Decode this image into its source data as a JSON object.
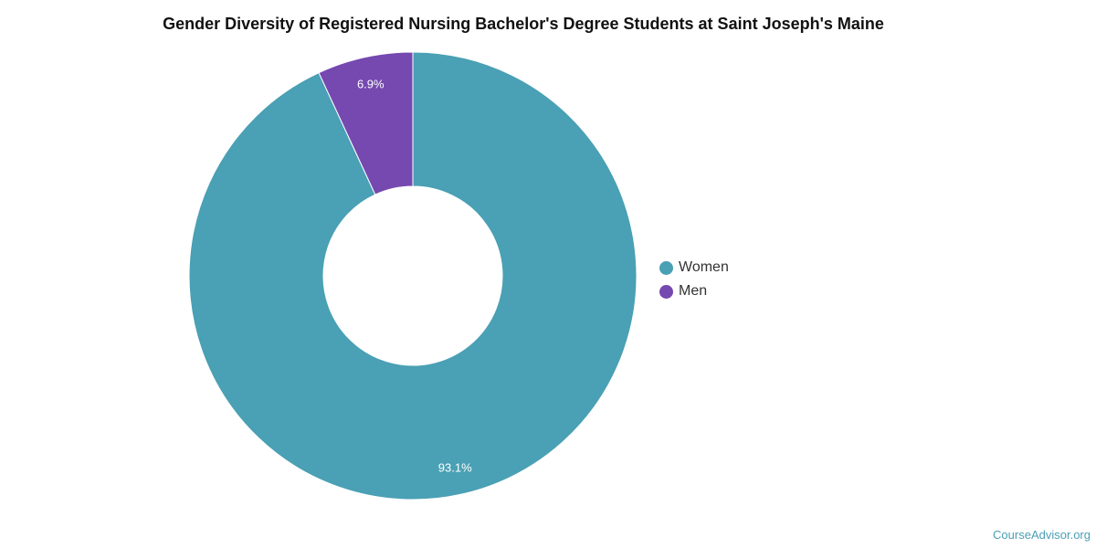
{
  "chart_data": {
    "type": "pie",
    "title": "Gender Diversity of Registered Nursing Bachelor's Degree Students at Saint Joseph's Maine",
    "donut": true,
    "categories": [
      "Women",
      "Men"
    ],
    "values": [
      93.1,
      6.9
    ],
    "value_labels": [
      "93.1%",
      "6.9%"
    ],
    "colors": [
      "#4aa0b4",
      "#7549b0"
    ],
    "legend": {
      "position": "right",
      "entries": [
        "Women",
        "Men"
      ]
    }
  },
  "watermark": "CourseAdvisor.org"
}
